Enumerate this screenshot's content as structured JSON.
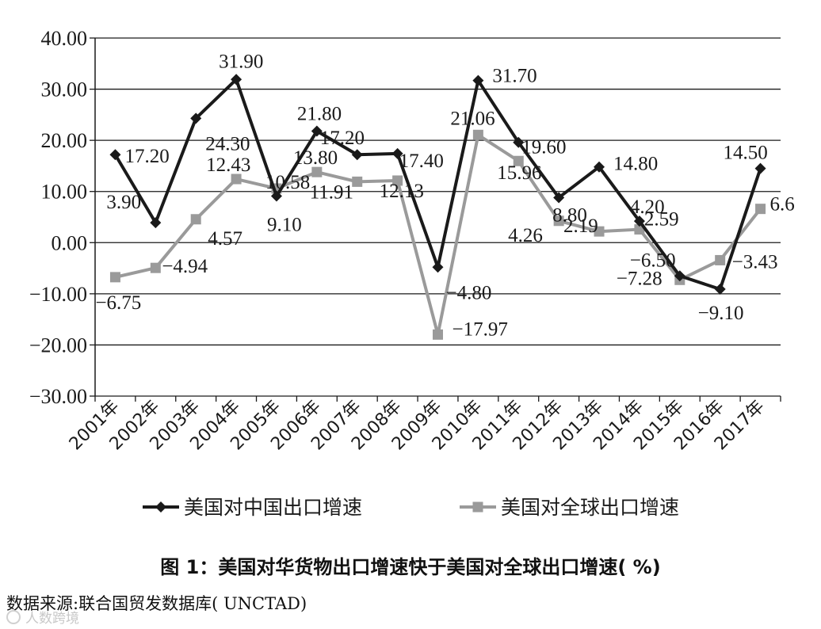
{
  "chart_data": {
    "type": "line",
    "categories": [
      "2001年",
      "2002年",
      "2003年",
      "2004年",
      "2005年",
      "2006年",
      "2007年",
      "2008年",
      "2009年",
      "2010年",
      "2011年",
      "2012年",
      "2013年",
      "2014年",
      "2015年",
      "2016年",
      "2017年"
    ],
    "series": [
      {
        "name": "美国对中国出口增速",
        "color": "#1a1a1a",
        "marker": "diamond",
        "values": [
          17.2,
          3.9,
          24.3,
          31.9,
          9.1,
          21.8,
          17.2,
          17.4,
          -4.8,
          31.7,
          19.6,
          8.8,
          14.8,
          4.2,
          -6.5,
          -9.1,
          14.5
        ],
        "labels": [
          "17.20",
          "3.90",
          "24.30",
          "31.90",
          "9.10",
          "21.80",
          "17.20",
          "17.40",
          "−4.80",
          "31.70",
          "19.60",
          "8.80",
          "14.80",
          "4.20",
          "−6.50",
          "−9.10",
          "14.50"
        ]
      },
      {
        "name": "美国对全球出口增速",
        "color": "#9a9a9a",
        "marker": "square",
        "values": [
          -6.75,
          -4.94,
          4.57,
          12.43,
          10.58,
          13.8,
          11.91,
          12.13,
          -17.97,
          21.06,
          15.96,
          4.26,
          2.19,
          2.59,
          -7.28,
          -3.43,
          6.6
        ],
        "labels": [
          "−6.75",
          "−4.94",
          "4.57",
          "12.43",
          "10.58",
          "13.80",
          "11.91",
          "12.13",
          "−17.97",
          "21.06",
          "15.96",
          "4.26",
          "2.19",
          "2.59",
          "−7.28",
          "−3.43",
          "6.6"
        ]
      }
    ],
    "y_ticks": [
      "40.00",
      "30.00",
      "20.00",
      "10.00",
      "0.00",
      "−10.00",
      "−20.00",
      "−30.00"
    ],
    "ylim": [
      -30,
      40
    ],
    "ytick_step": 10,
    "grid": true,
    "legend_position": "bottom",
    "title": "图 1：美国对华货物出口增速快于美国对全球出口增速( %)",
    "source": "数据来源:联合国贸发数据库( UNCTAD)"
  },
  "watermark": "人数跨境"
}
